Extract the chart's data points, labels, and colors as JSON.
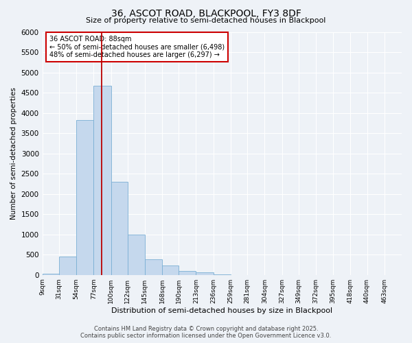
{
  "title": "36, ASCOT ROAD, BLACKPOOL, FY3 8DF",
  "subtitle": "Size of property relative to semi-detached houses in Blackpool",
  "xlabel": "Distribution of semi-detached houses by size in Blackpool",
  "ylabel": "Number of semi-detached properties",
  "footnote1": "Contains HM Land Registry data © Crown copyright and database right 2025.",
  "footnote2": "Contains public sector information licensed under the Open Government Licence v3.0.",
  "bin_labels": [
    "9sqm",
    "31sqm",
    "54sqm",
    "77sqm",
    "100sqm",
    "122sqm",
    "145sqm",
    "168sqm",
    "190sqm",
    "213sqm",
    "236sqm",
    "259sqm",
    "281sqm",
    "304sqm",
    "327sqm",
    "349sqm",
    "372sqm",
    "395sqm",
    "418sqm",
    "440sqm",
    "463sqm"
  ],
  "bin_edges": [
    9,
    31,
    54,
    77,
    100,
    122,
    145,
    168,
    190,
    213,
    236,
    259,
    281,
    304,
    327,
    349,
    372,
    395,
    418,
    440,
    463
  ],
  "bar_values": [
    30,
    450,
    3820,
    4670,
    2300,
    1000,
    390,
    230,
    100,
    60,
    5,
    0,
    0,
    0,
    0,
    0,
    0,
    0,
    0,
    0
  ],
  "bar_color": "#c5d8ed",
  "bar_edge_color": "#7aafd4",
  "property_line_x": 88,
  "property_line_color": "#bb0000",
  "annotation_title": "36 ASCOT ROAD: 88sqm",
  "annotation_line1": "← 50% of semi-detached houses are smaller (6,498)",
  "annotation_line2": "48% of semi-detached houses are larger (6,297) →",
  "annotation_box_color": "#cc0000",
  "ylim": [
    0,
    6000
  ],
  "yticks": [
    0,
    500,
    1000,
    1500,
    2000,
    2500,
    3000,
    3500,
    4000,
    4500,
    5000,
    5500,
    6000
  ],
  "background_color": "#eef2f7",
  "plot_bg_color": "#eef2f7",
  "grid_color": "#ffffff"
}
